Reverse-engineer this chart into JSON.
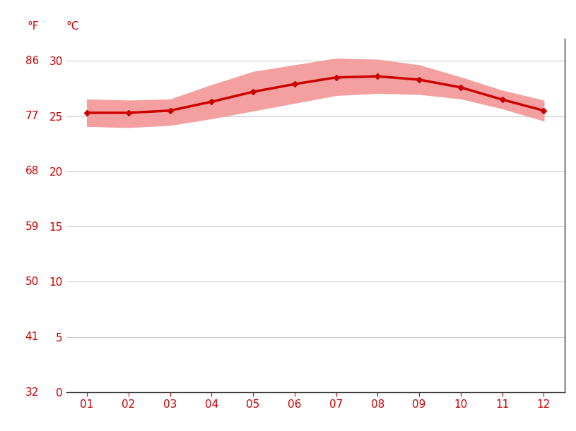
{
  "months": [
    1,
    2,
    3,
    4,
    5,
    6,
    7,
    8,
    9,
    10,
    11,
    12
  ],
  "month_labels": [
    "01",
    "02",
    "03",
    "04",
    "05",
    "06",
    "07",
    "08",
    "09",
    "10",
    "11",
    "12"
  ],
  "avg_temp_c": [
    25.3,
    25.3,
    25.5,
    26.3,
    27.2,
    27.9,
    28.5,
    28.6,
    28.3,
    27.6,
    26.5,
    25.5
  ],
  "upper_band_c": [
    26.5,
    26.4,
    26.5,
    27.8,
    29.0,
    29.6,
    30.2,
    30.1,
    29.6,
    28.5,
    27.3,
    26.4
  ],
  "lower_band_c": [
    24.1,
    24.0,
    24.2,
    24.8,
    25.5,
    26.2,
    26.9,
    27.1,
    27.0,
    26.6,
    25.7,
    24.6
  ],
  "line_color": "#cc0000",
  "band_color": "#f4a0a0",
  "marker": "D",
  "marker_size": 4,
  "line_width": 2.5,
  "background_color": "#ffffff",
  "grid_color": "#cccccc",
  "axis_color": "#cc0000",
  "label_f": "°F",
  "label_c": "°C",
  "yticks_c": [
    0,
    5,
    10,
    15,
    20,
    25,
    30
  ],
  "yticks_f": [
    32,
    41,
    50,
    59,
    68,
    77,
    86
  ],
  "ylim_c": [
    0,
    32
  ],
  "xlim": [
    0.5,
    12.5
  ]
}
